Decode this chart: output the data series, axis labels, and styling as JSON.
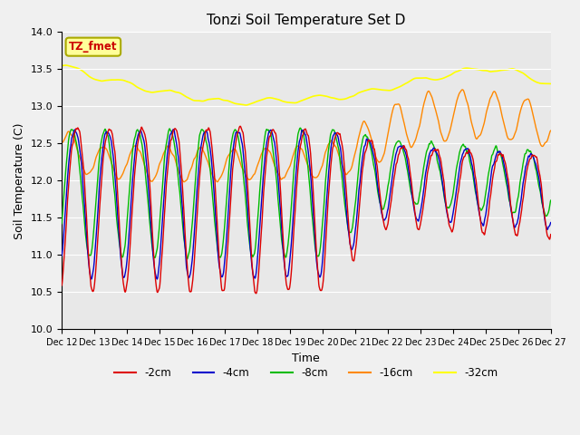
{
  "title": "Tonzi Soil Temperature Set D",
  "xlabel": "Time",
  "ylabel": "Soil Temperature (C)",
  "ylim": [
    10.0,
    14.0
  ],
  "yticks": [
    10.0,
    10.5,
    11.0,
    11.5,
    12.0,
    12.5,
    13.0,
    13.5,
    14.0
  ],
  "plot_bg_color": "#e8e8e8",
  "fig_bg_color": "#f0f0f0",
  "legend_entries": [
    "-2cm",
    "-4cm",
    "-8cm",
    "-16cm",
    "-32cm"
  ],
  "line_colors": [
    "#dd0000",
    "#0000cc",
    "#00bb00",
    "#ff8800",
    "#ffff00"
  ],
  "annotation_text": "TZ_fmet",
  "annotation_color": "#cc0000",
  "annotation_bg": "#ffff99",
  "annotation_border": "#aaaa00",
  "xtick_days": [
    12,
    13,
    14,
    15,
    16,
    17,
    18,
    19,
    20,
    21,
    22,
    23,
    24,
    25,
    26,
    27
  ]
}
